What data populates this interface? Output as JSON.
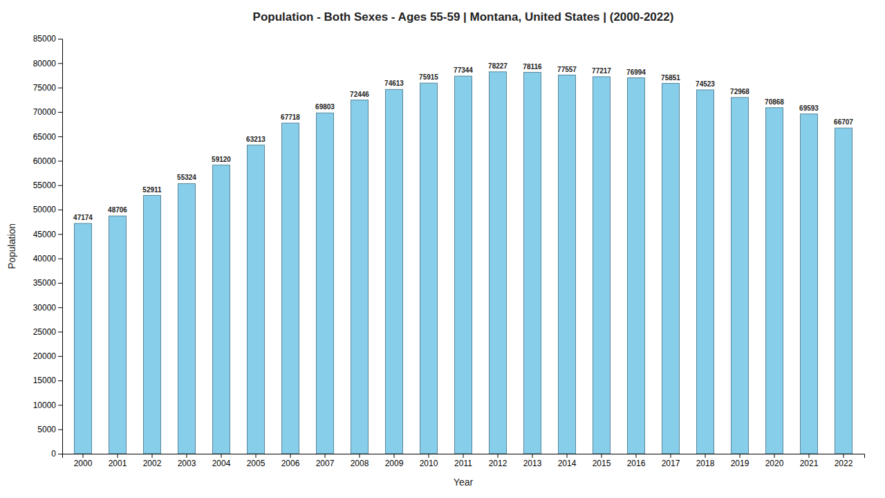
{
  "chart_data": {
    "type": "bar",
    "title": "Population - Both Sexes - Ages 55-59 | Montana, United States |  (2000-2022)",
    "xlabel": "Year",
    "ylabel": "Population",
    "categories": [
      "2000",
      "2001",
      "2002",
      "2003",
      "2004",
      "2005",
      "2006",
      "2007",
      "2008",
      "2009",
      "2010",
      "2011",
      "2012",
      "2013",
      "2014",
      "2015",
      "2016",
      "2017",
      "2018",
      "2019",
      "2020",
      "2021",
      "2022"
    ],
    "values": [
      47174,
      48706,
      52911,
      55324,
      59120,
      63213,
      67718,
      69803,
      72446,
      74613,
      75915,
      77344,
      78227,
      78116,
      77557,
      77217,
      76994,
      75851,
      74523,
      72968,
      70868,
      69593,
      66707
    ],
    "color": "#87CEEB",
    "ylim": [
      0,
      85000
    ],
    "yticks": [
      0,
      5000,
      10000,
      15000,
      20000,
      25000,
      30000,
      35000,
      40000,
      45000,
      50000,
      55000,
      60000,
      65000,
      70000,
      75000,
      80000,
      85000
    ],
    "grid": false,
    "data_labels": true
  }
}
